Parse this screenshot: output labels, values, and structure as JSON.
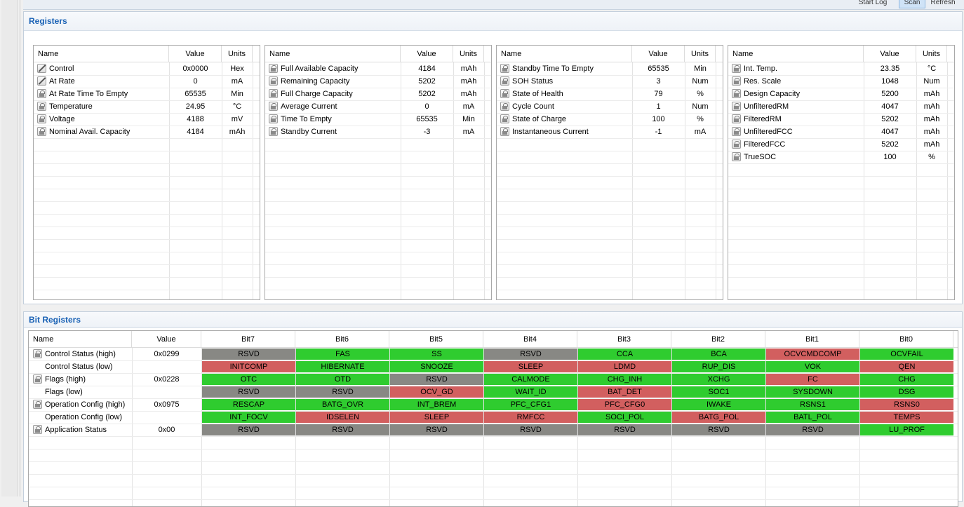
{
  "topbar": {
    "buttons": [
      "Start Log",
      "Scan",
      "Refresh"
    ]
  },
  "registers": {
    "title": "Registers",
    "headers": {
      "name": "Name",
      "value": "Value",
      "units": "Units"
    },
    "panels": [
      [
        {
          "icon": "pencil",
          "name": "Control",
          "value": "0x0000",
          "units": "Hex"
        },
        {
          "icon": "pencil",
          "name": "At Rate",
          "value": "0",
          "units": "mA"
        },
        {
          "icon": "lock",
          "name": "At Rate Time To Empty",
          "value": "65535",
          "units": "Min"
        },
        {
          "icon": "lock",
          "name": "Temperature",
          "value": "24.95",
          "units": "°C"
        },
        {
          "icon": "lock",
          "name": "Voltage",
          "value": "4188",
          "units": "mV"
        },
        {
          "icon": "lock",
          "name": "Nominal Avail. Capacity",
          "value": "4184",
          "units": "mAh"
        }
      ],
      [
        {
          "icon": "lock",
          "name": "Full Available Capacity",
          "value": "4184",
          "units": "mAh"
        },
        {
          "icon": "lock",
          "name": "Remaining Capacity",
          "value": "5202",
          "units": "mAh"
        },
        {
          "icon": "lock",
          "name": "Full Charge Capacity",
          "value": "5202",
          "units": "mAh"
        },
        {
          "icon": "lock",
          "name": "Average Current",
          "value": "0",
          "units": "mA"
        },
        {
          "icon": "lock",
          "name": "Time To Empty",
          "value": "65535",
          "units": "Min"
        },
        {
          "icon": "lock",
          "name": "Standby Current",
          "value": "-3",
          "units": "mA"
        }
      ],
      [
        {
          "icon": "lock",
          "name": "Standby Time To Empty",
          "value": "65535",
          "units": "Min"
        },
        {
          "icon": "lock",
          "name": "SOH Status",
          "value": "3",
          "units": "Num"
        },
        {
          "icon": "lock",
          "name": "State of Health",
          "value": "79",
          "units": "%"
        },
        {
          "icon": "lock",
          "name": "Cycle Count",
          "value": "1",
          "units": "Num"
        },
        {
          "icon": "lock",
          "name": "State of Charge",
          "value": "100",
          "units": "%"
        },
        {
          "icon": "lock",
          "name": "Instantaneous Current",
          "value": "-1",
          "units": "mA"
        }
      ],
      [
        {
          "icon": "lock",
          "name": "Int. Temp.",
          "value": "23.35",
          "units": "°C"
        },
        {
          "icon": "lock",
          "name": "Res. Scale",
          "value": "1048",
          "units": "Num"
        },
        {
          "icon": "lock",
          "name": "Design Capacity",
          "value": "5200",
          "units": "mAh"
        },
        {
          "icon": "lock",
          "name": "UnfilteredRM",
          "value": "4047",
          "units": "mAh"
        },
        {
          "icon": "lock",
          "name": "FilteredRM",
          "value": "5202",
          "units": "mAh"
        },
        {
          "icon": "lock",
          "name": "UnfilteredFCC",
          "value": "4047",
          "units": "mAh"
        },
        {
          "icon": "lock",
          "name": "FilteredFCC",
          "value": "5202",
          "units": "mAh"
        },
        {
          "icon": "lock",
          "name": "TrueSOC",
          "value": "100",
          "units": "%"
        }
      ]
    ]
  },
  "bit_registers": {
    "title": "Bit Registers",
    "headers": [
      "Name",
      "Value",
      "Bit7",
      "Bit6",
      "Bit5",
      "Bit4",
      "Bit3",
      "Bit2",
      "Bit1",
      "Bit0"
    ],
    "colors": {
      "set": "#2fcc2f",
      "clear": "#d25f5f",
      "reserved": "#888884"
    },
    "rows": [
      {
        "icon": "lock",
        "name": "Control Status (high)",
        "value": "0x0299",
        "bits": [
          [
            "RSVD",
            "n"
          ],
          [
            "FAS",
            "g"
          ],
          [
            "SS",
            "g"
          ],
          [
            "RSVD",
            "n"
          ],
          [
            "CCA",
            "g"
          ],
          [
            "BCA",
            "g"
          ],
          [
            "OCVCMDCOMP",
            "r"
          ],
          [
            "OCVFAIL",
            "g"
          ]
        ]
      },
      {
        "icon": "",
        "name": "Control Status (low)",
        "value": "",
        "bits": [
          [
            "INITCOMP",
            "r"
          ],
          [
            "HIBERNATE",
            "g"
          ],
          [
            "SNOOZE",
            "g"
          ],
          [
            "SLEEP",
            "r"
          ],
          [
            "LDMD",
            "r"
          ],
          [
            "RUP_DIS",
            "g"
          ],
          [
            "VOK",
            "g"
          ],
          [
            "QEN",
            "r"
          ]
        ]
      },
      {
        "icon": "lock",
        "name": "Flags (high)",
        "value": "0x0228",
        "bits": [
          [
            "OTC",
            "g"
          ],
          [
            "OTD",
            "g"
          ],
          [
            "RSVD",
            "n"
          ],
          [
            "CALMODE",
            "g"
          ],
          [
            "CHG_INH",
            "g"
          ],
          [
            "XCHG",
            "g"
          ],
          [
            "FC",
            "r"
          ],
          [
            "CHG",
            "g"
          ]
        ]
      },
      {
        "icon": "",
        "name": "Flags (low)",
        "value": "",
        "bits": [
          [
            "RSVD",
            "n"
          ],
          [
            "RSVD",
            "n"
          ],
          [
            "OCV_GD",
            "r"
          ],
          [
            "WAIT_ID",
            "g"
          ],
          [
            "BAT_DET",
            "r"
          ],
          [
            "SOC1",
            "g"
          ],
          [
            "SYSDOWN",
            "g"
          ],
          [
            "DSG",
            "g"
          ]
        ]
      },
      {
        "icon": "lock",
        "name": "Operation Config (high)",
        "value": "0x0975",
        "bits": [
          [
            "RESCAP",
            "g"
          ],
          [
            "BATG_OVR",
            "g"
          ],
          [
            "INT_BREM",
            "g"
          ],
          [
            "PFC_CFG1",
            "g"
          ],
          [
            "PFC_CFG0",
            "r"
          ],
          [
            "IWAKE",
            "g"
          ],
          [
            "RSNS1",
            "g"
          ],
          [
            "RSNS0",
            "r"
          ]
        ]
      },
      {
        "icon": "",
        "name": "Operation Config (low)",
        "value": "",
        "bits": [
          [
            "INT_FOCV",
            "g"
          ],
          [
            "IDSELEN",
            "r"
          ],
          [
            "SLEEP",
            "r"
          ],
          [
            "RMFCC",
            "r"
          ],
          [
            "SOCI_POL",
            "g"
          ],
          [
            "BATG_POL",
            "r"
          ],
          [
            "BATL_POL",
            "g"
          ],
          [
            "TEMPS",
            "r"
          ]
        ]
      },
      {
        "icon": "lock",
        "name": "Application Status",
        "value": "0x00",
        "bits": [
          [
            "RSVD",
            "n"
          ],
          [
            "RSVD",
            "n"
          ],
          [
            "RSVD",
            "n"
          ],
          [
            "RSVD",
            "n"
          ],
          [
            "RSVD",
            "n"
          ],
          [
            "RSVD",
            "n"
          ],
          [
            "RSVD",
            "n"
          ],
          [
            "LU_PROF",
            "g"
          ]
        ]
      }
    ]
  }
}
